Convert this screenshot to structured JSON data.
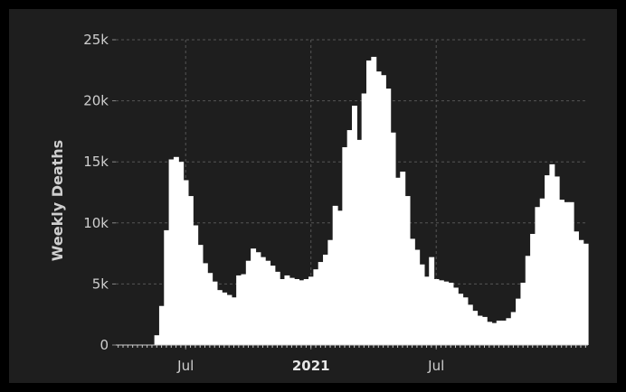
{
  "chart_data": {
    "type": "bar",
    "title": "",
    "xlabel": "",
    "ylabel": "Weekly Deaths",
    "ylim": [
      0,
      25000
    ],
    "y_ticks": [
      {
        "value": 0,
        "label": "0"
      },
      {
        "value": 5000,
        "label": "5k"
      },
      {
        "value": 10000,
        "label": "10k"
      },
      {
        "value": 15000,
        "label": "15k"
      },
      {
        "value": 20000,
        "label": "20k"
      },
      {
        "value": 25000,
        "label": "25k"
      }
    ],
    "x_ticks": [
      {
        "week": 14,
        "label": "Jul",
        "bold": false
      },
      {
        "week": 40,
        "label": "2021",
        "bold": true
      },
      {
        "week": 66,
        "label": "Jul",
        "bold": false
      }
    ],
    "grid": true,
    "colors": {
      "bars": "#ffffff",
      "background": "#1e1e1e",
      "grid": "#555555",
      "text": "#cfcfcf"
    },
    "series": [
      {
        "values": [
          0,
          0,
          0,
          0,
          0,
          0,
          0,
          0,
          800,
          3200,
          9400,
          15200,
          15400,
          15000,
          13500,
          12200,
          9800,
          8200,
          6700,
          5900,
          5200,
          4500,
          4300,
          4100,
          3900,
          5700,
          5800,
          6900,
          7900,
          7600,
          7200,
          6900,
          6500,
          6000,
          5400,
          5700,
          5500,
          5400,
          5300,
          5400,
          5600,
          6200,
          6800,
          7400,
          8600,
          11400,
          11000,
          16200,
          17600,
          19600,
          16800,
          20600,
          23300,
          23600,
          22400,
          22100,
          21000,
          17400,
          13700,
          14200,
          12200,
          8700,
          7800,
          6600,
          5600,
          7200,
          5400,
          5300,
          5200,
          5100,
          4700,
          4200,
          3900,
          3300,
          2800,
          2400,
          2300,
          1900,
          1800,
          2000,
          2000,
          2200,
          2700,
          3800,
          5100,
          7300,
          9100,
          11300,
          12000,
          13900,
          14800,
          13800,
          11900,
          11700,
          11700,
          9300,
          8600,
          8300
        ]
      }
    ]
  }
}
